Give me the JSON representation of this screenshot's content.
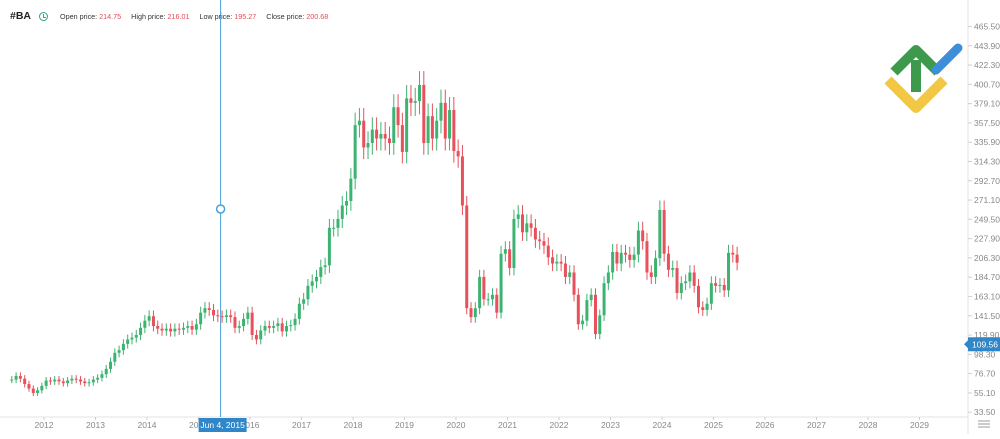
{
  "header": {
    "symbol": "#BA",
    "clock_icon": "clock-icon",
    "open_label": "Open price:",
    "open_value": "214.75",
    "high_label": "High price:",
    "high_value": "216.01",
    "low_label": "Low price:",
    "low_value": "195.27",
    "close_label": "Close price:",
    "close_value": "200.68"
  },
  "crosshair": {
    "date_label": "Jun 4, 2015",
    "date": "2015-06-04"
  },
  "logo": {
    "name": "brand-logo"
  },
  "chart_data": {
    "type": "candlestick",
    "title": "",
    "xlabel": "",
    "ylabel": "",
    "x_ticks": [
      "2012",
      "2013",
      "2014",
      "2015",
      "2016",
      "2017",
      "2018",
      "2019",
      "2020",
      "2021",
      "2022",
      "2023",
      "2024",
      "2025",
      "2026",
      "2027",
      "2028",
      "2029"
    ],
    "y_ticks": [
      "33.50",
      "55.10",
      "76.70",
      "98.30",
      "119.90",
      "141.50",
      "163.10",
      "184.70",
      "206.30",
      "227.90",
      "249.50",
      "271.10",
      "292.70",
      "314.30",
      "335.90",
      "357.50",
      "379.10",
      "400.70",
      "422.30",
      "443.90",
      "465.50"
    ],
    "ylim": [
      27,
      475
    ],
    "last_price": "109.56",
    "grid": false,
    "colors": {
      "up": "#3cb371",
      "down": "#e8505b",
      "axis_text": "#888888",
      "crosshair": "#4a9fd8",
      "price_tag": "#2f86c8"
    },
    "candles_monthly_close": [
      {
        "start": "2011-05",
        "close": [
          70,
          74,
          71,
          65,
          60,
          55,
          58,
          63,
          69,
          68
        ]
      },
      {
        "start": "2012-03",
        "close": [
          70,
          68,
          66,
          69,
          71,
          70,
          68,
          66,
          67,
          70
        ]
      },
      {
        "start": "2013-01",
        "close": [
          72,
          76,
          82,
          90,
          100,
          103,
          110,
          115,
          117,
          120,
          128,
          136
        ]
      },
      {
        "start": "2014-01",
        "close": [
          141,
          130,
          127,
          125,
          127,
          124,
          127,
          126,
          128,
          130,
          126,
          132
        ]
      },
      {
        "start": "2015-01",
        "close": [
          145,
          150,
          148,
          142,
          141,
          140,
          142,
          140,
          128,
          130,
          138,
          145
        ]
      },
      {
        "start": "2016-01",
        "close": [
          120,
          115,
          125,
          130,
          128,
          130,
          133,
          124,
          130,
          131,
          138,
          155
        ]
      },
      {
        "start": "2017-01",
        "close": [
          160,
          175,
          180,
          185,
          196,
          198,
          240,
          240,
          250,
          265,
          270,
          295
        ]
      },
      {
        "start": "2018-01",
        "close": [
          355,
          360,
          330,
          335,
          350,
          340,
          345,
          340,
          335,
          375,
          355,
          325
        ]
      },
      {
        "start": "2019-01",
        "close": [
          385,
          380,
          382,
          400,
          335,
          365,
          340,
          360,
          380,
          340,
          372,
          326
        ]
      },
      {
        "start": "2020-01",
        "close": [
          320,
          265,
          150,
          140,
          150,
          185,
          160,
          160,
          165,
          145,
          211,
          216
        ]
      },
      {
        "start": "2021-01",
        "close": [
          195,
          250,
          255,
          235,
          245,
          240,
          227,
          225,
          220,
          207,
          200,
          202
        ]
      },
      {
        "start": "2022-01",
        "close": [
          200,
          185,
          190,
          165,
          132,
          136,
          159,
          165,
          121,
          142,
          178,
          190
        ]
      },
      {
        "start": "2023-01",
        "close": [
          213,
          200,
          212,
          210,
          204,
          210,
          237,
          225,
          190,
          185,
          206,
          260
        ]
      },
      {
        "start": "2024-01",
        "close": [
          211,
          193,
          195,
          167,
          178,
          180,
          190,
          175,
          151,
          148,
          155,
          178
        ]
      },
      {
        "start": "2025-01",
        "close": [
          175,
          176,
          170,
          212,
          210,
          201
        ]
      }
    ]
  }
}
